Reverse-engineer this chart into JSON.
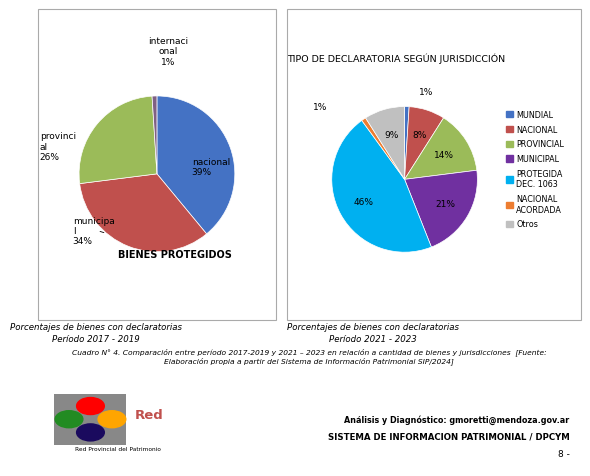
{
  "pie1": {
    "labels": [
      "nacional",
      "municipal",
      "provincial",
      "internacional"
    ],
    "values": [
      39,
      34,
      26,
      1
    ],
    "colors": [
      "#4472C4",
      "#C0504D",
      "#9BBB59",
      "#7F6084"
    ],
    "startangle": 90
  },
  "pie2": {
    "title": "TIPO DE DECLARATORIA SEGÚN JURISDICCIÓN",
    "labels": [
      "MUNDIAL",
      "NACIONAL",
      "PROVINCIAL",
      "MUNICIPAL",
      "PROTEGIDA\nDEC. 1063",
      "NACIONAL\nACORDADA",
      "Otros"
    ],
    "values": [
      1,
      8,
      14,
      21,
      46,
      1,
      9
    ],
    "colors": [
      "#4472C4",
      "#C0504D",
      "#9BBB59",
      "#7030A0",
      "#00B0F0",
      "#ED7D31",
      "#C0C0C0"
    ],
    "startangle": 90
  },
  "caption1": "Porcentajes de bienes con declaratorias\nPeríodo 2017 - 2019",
  "caption2": "Porcentajes de bienes con declaratorias\nPeríodo 2021 - 2023",
  "footnote_line1": "Cuadro N° 4. Comparación entre período 2017-2019 y 2021 – 2023 en relación a cantidad de bienes y jurisdicciones  [Fuente:",
  "footnote_line2": "Elaboración propia a partir del Sistema de Información Patrimonial SIP/2024]",
  "footer_right_line1": "Análisis y Diagnóstico: gmoretti@mendoza.gov.ar",
  "footer_right_line2": "SISTEMA DE INFORMACION PATRIMONIAL / DPCYM",
  "footer_right_line3": "8 -",
  "background_color": "#FFFFFF"
}
